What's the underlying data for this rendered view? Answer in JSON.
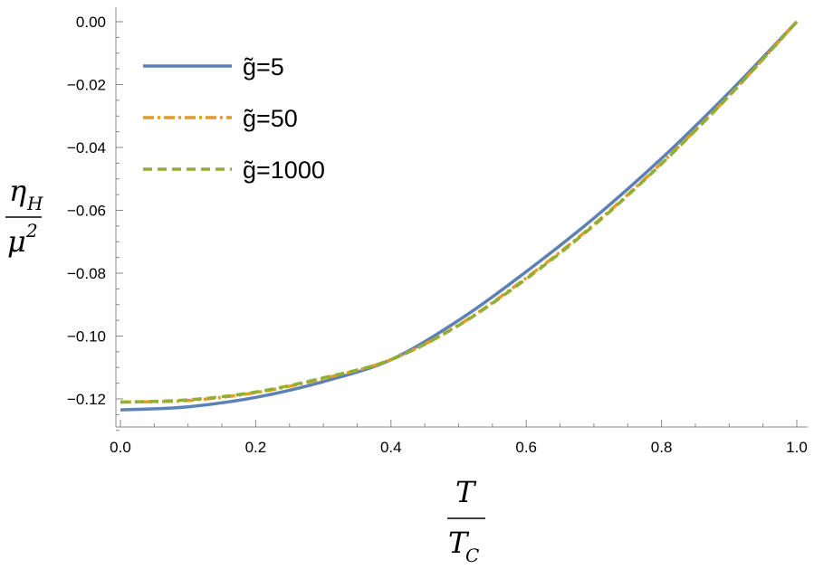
{
  "chart_data": {
    "type": "line",
    "title": "",
    "xlim": [
      0,
      1.0
    ],
    "ylim": [
      -0.13,
      0.005
    ],
    "x_ticks": [
      "0.0",
      "0.2",
      "0.4",
      "0.6",
      "0.8",
      "1.0"
    ],
    "y_ticks": [
      "0.00",
      "-0.02",
      "-0.04",
      "-0.06",
      "-0.08",
      "-0.10",
      "-0.12"
    ],
    "xlabel": {
      "numerator": "T",
      "denominator": "T",
      "denominator_sub": "C"
    },
    "ylabel": {
      "numerator": "η",
      "numerator_sub": "H",
      "denominator": "μ",
      "denominator_sup": "2"
    },
    "legend_position": "top-left",
    "grid": false,
    "series": [
      {
        "name": "g̃=5",
        "color": "#5E81B5",
        "style": "solid",
        "x": [
          0.0,
          0.1,
          0.2,
          0.3,
          0.4,
          0.5,
          0.6,
          0.7,
          0.8,
          0.9,
          1.0
        ],
        "values": [
          -0.1235,
          -0.1225,
          -0.1195,
          -0.1145,
          -0.1075,
          -0.095,
          -0.0795,
          -0.0625,
          -0.0435,
          -0.0225,
          0.0
        ]
      },
      {
        "name": "g̃=50",
        "color": "#E19C24",
        "style": "dot-dash",
        "x": [
          0.0,
          0.1,
          0.2,
          0.3,
          0.4,
          0.5,
          0.6,
          0.7,
          0.8,
          0.9,
          1.0
        ],
        "values": [
          -0.121,
          -0.1205,
          -0.118,
          -0.1135,
          -0.1075,
          -0.0965,
          -0.0815,
          -0.0645,
          -0.045,
          -0.0235,
          0.0
        ]
      },
      {
        "name": "g̃=1000",
        "color": "#8FB032",
        "style": "dashed",
        "x": [
          0.0,
          0.1,
          0.2,
          0.3,
          0.4,
          0.5,
          0.6,
          0.7,
          0.8,
          0.9,
          1.0
        ],
        "values": [
          -0.121,
          -0.1203,
          -0.1178,
          -0.1133,
          -0.1075,
          -0.0966,
          -0.0818,
          -0.0648,
          -0.0452,
          -0.0236,
          0.0
        ]
      }
    ]
  }
}
